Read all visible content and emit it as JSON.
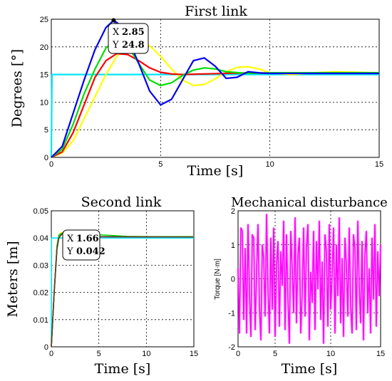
{
  "chart_data": [
    {
      "id": "c1",
      "type": "line",
      "title": "First link",
      "xlabel": "Time [s]",
      "ylabel": "Degrees [°]",
      "xlim": [
        0,
        15
      ],
      "ylim": [
        0,
        25
      ],
      "xticks": [
        0,
        5,
        10,
        15
      ],
      "yticks": [
        0,
        5,
        10,
        15,
        20,
        25
      ],
      "grid": true,
      "series": [
        {
          "color": "#00e5ff",
          "x": [
            0,
            0.03,
            15
          ],
          "y": [
            0,
            15,
            15
          ]
        },
        {
          "color": "#ffff00",
          "x": [
            0,
            0.5,
            1,
            1.5,
            2,
            2.5,
            3,
            3.5,
            4,
            4.5,
            5,
            5.5,
            6,
            6.5,
            7,
            7.5,
            8,
            8.5,
            9,
            9.5,
            10,
            11,
            12,
            13,
            14,
            15
          ],
          "y": [
            0,
            0.8,
            3,
            7,
            11,
            15,
            18.3,
            20.3,
            21,
            20.2,
            18.3,
            16,
            14,
            13,
            13.2,
            14.2,
            15.5,
            16.3,
            16.4,
            16,
            15.3,
            15,
            15.3,
            15.5,
            15.4,
            15.3
          ]
        },
        {
          "color": "#ff0000",
          "x": [
            0,
            0.5,
            1,
            1.5,
            2,
            2.5,
            3,
            3.5,
            4,
            4.5,
            5,
            5.5,
            6,
            7,
            8,
            9,
            10,
            12,
            15
          ],
          "y": [
            0,
            1,
            4.5,
            9.5,
            14.5,
            17.5,
            18.8,
            18.6,
            17.5,
            16.2,
            15.4,
            15.1,
            15,
            15.1,
            15.2,
            15.3,
            15.2,
            15.2,
            15.2
          ]
        },
        {
          "color": "#00dd00",
          "x": [
            0,
            0.5,
            1,
            1.5,
            2,
            2.5,
            3,
            3.5,
            4,
            4.5,
            5,
            5.5,
            6,
            6.5,
            7,
            7.5,
            8,
            9,
            10,
            12,
            15
          ],
          "y": [
            0,
            1.5,
            6,
            11.5,
            16,
            19.8,
            21.5,
            20.2,
            17,
            14,
            13,
            13.5,
            14.8,
            15.8,
            16.2,
            16,
            15.5,
            15.2,
            15.3,
            15.3,
            15.3
          ]
        },
        {
          "color": "#0000ee",
          "x": [
            0,
            0.5,
            1,
            1.5,
            2,
            2.5,
            2.85,
            3.2,
            3.5,
            4,
            4.5,
            5,
            5.5,
            6,
            6.5,
            7,
            7.5,
            8,
            8.5,
            9,
            9.5,
            10,
            11,
            12,
            13,
            14,
            15
          ],
          "y": [
            0,
            2,
            8,
            14,
            19.5,
            23.5,
            24.8,
            23.8,
            21.5,
            17,
            12,
            9.5,
            10.5,
            14,
            17.5,
            18,
            16.5,
            14.3,
            14.5,
            15.5,
            15.3,
            15.2,
            15.2,
            15.2,
            15.2,
            15.2,
            15.2
          ]
        }
      ],
      "datatip": {
        "x_label": "X",
        "x_value": "2.85",
        "y_label": "Y",
        "y_value": "24.8",
        "x": 2.85,
        "y": 24.8
      }
    },
    {
      "id": "c2",
      "type": "line",
      "title": "Second link",
      "xlabel": "Time [s]",
      "ylabel": "Meters [m]",
      "xlim": [
        0,
        15
      ],
      "ylim": [
        0,
        0.05
      ],
      "xticks": [
        0,
        5,
        10,
        15
      ],
      "yticks": [
        0,
        0.01,
        0.02,
        0.03,
        0.04,
        0.05
      ],
      "grid": true,
      "series": [
        {
          "color": "#00e5ff",
          "x": [
            0,
            0.02,
            15
          ],
          "y": [
            0,
            0.04,
            0.04
          ]
        },
        {
          "color": "#ffff00",
          "x": [
            0,
            0.3,
            0.6,
            0.8,
            1,
            1.3,
            1.6,
            2,
            3,
            5,
            15
          ],
          "y": [
            0,
            0.02,
            0.037,
            0.041,
            0.042,
            0.042,
            0.042,
            0.0415,
            0.041,
            0.0405,
            0.0404
          ]
        },
        {
          "color": "#ff0000",
          "x": [
            0,
            0.3,
            0.6,
            0.8,
            1,
            1.3,
            1.66,
            2,
            3,
            5,
            15
          ],
          "y": [
            0,
            0.02,
            0.037,
            0.041,
            0.0415,
            0.042,
            0.042,
            0.0415,
            0.041,
            0.0405,
            0.0404
          ]
        },
        {
          "color": "#0000ee",
          "x": [
            0,
            0.3,
            0.6,
            0.8,
            1,
            1.3,
            1.66,
            2,
            3,
            5,
            15
          ],
          "y": [
            0,
            0.02,
            0.037,
            0.041,
            0.0415,
            0.042,
            0.042,
            0.0415,
            0.041,
            0.0405,
            0.0404
          ]
        },
        {
          "color": "#00dd00",
          "x": [
            0,
            0.3,
            0.6,
            0.8,
            1,
            1.3,
            1.66,
            2,
            3,
            5,
            6,
            8,
            10,
            15
          ],
          "y": [
            0,
            0.02,
            0.037,
            0.041,
            0.0415,
            0.042,
            0.042,
            0.0415,
            0.041,
            0.0412,
            0.041,
            0.0406,
            0.0405,
            0.0405
          ]
        },
        {
          "color": "#6b3a1f",
          "x": [
            0,
            0.3,
            0.6,
            0.8,
            1,
            1.3,
            1.66,
            2,
            3,
            5,
            15
          ],
          "y": [
            0,
            0.02,
            0.036,
            0.04,
            0.041,
            0.042,
            0.042,
            0.0415,
            0.041,
            0.0405,
            0.0404
          ]
        }
      ],
      "datatip": {
        "x_label": "X",
        "x_value": "1.66",
        "y_label": "Y",
        "y_value": "0.042",
        "x": 1.66,
        "y": 0.042
      }
    },
    {
      "id": "c3",
      "type": "line",
      "title": "Mechanical disturbance",
      "xlabel": "Time [s]",
      "ylabel": "Torque [N·m]",
      "xlim": [
        0,
        2
      ],
      "ylim": [
        -2,
        2
      ],
      "xticks": [
        0,
        5,
        10,
        15
      ],
      "yticks": [
        -2,
        -1,
        0,
        1,
        2
      ],
      "grid": true,
      "series": [
        {
          "color": "#ff00ff",
          "x_start": 0,
          "x_step": 0.02,
          "y": [
            0.3,
            -1.6,
            1.5,
            1.4,
            -1.2,
            0.9,
            -1.6,
            1.6,
            -0.4,
            -1.7,
            1.3,
            1.2,
            -1.5,
            0.2,
            1.6,
            -0.8,
            -1.8,
            1.0,
            0.6,
            -1.1,
            1.9,
            -0.3,
            -1.6,
            1.2,
            -0.9,
            1.5,
            -1.7,
            0.4,
            1.1,
            -1.4,
            0.8,
            -0.2,
            1.7,
            -1.5,
            1.3,
            -0.6,
            -1.9,
            1.4,
            0.3,
            -1.0,
            1.8,
            -1.3,
            0.7,
            1.2,
            -1.6,
            -0.4,
            1.5,
            -1.1,
            0.9,
            1.6,
            -1.8,
            0.2,
            -0.7,
            1.4,
            -1.5,
            1.1,
            -0.3,
            1.7,
            -1.2,
            0.5,
            -1.9,
            1.3,
            0.8,
            -1.4,
            1.6,
            -0.9,
            0.1,
            1.5,
            -1.6,
            1.0,
            -0.5,
            1.8,
            -1.3,
            0.6,
            -1.7,
            1.2,
            0.4,
            -1.1,
            1.5,
            -0.8,
            -1.6,
            1.3,
            0.9,
            -1.5,
            1.7,
            -0.2,
            -1.3,
            1.1,
            -1.8,
            0.7,
            1.4,
            -1.0,
            0.3,
            -1.6,
            1.2,
            -0.6,
            1.6,
            -1.4,
            0.8,
            -0.5,
            1.0
          ]
        }
      ]
    }
  ]
}
